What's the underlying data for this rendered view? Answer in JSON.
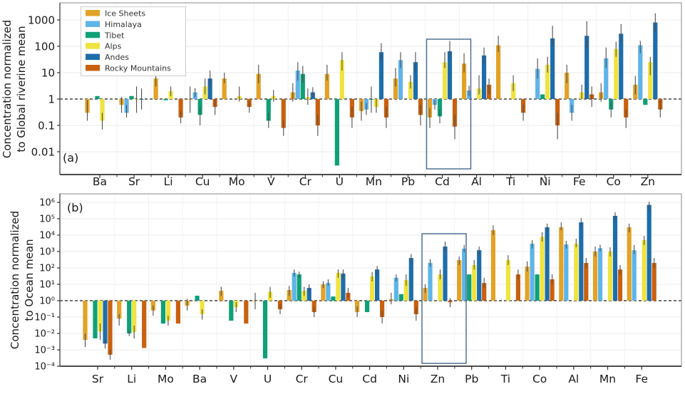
{
  "figure_title": "",
  "legend": {
    "position": "upper-left-panel-a",
    "items": [
      {
        "label": "Ice Sheets",
        "color": "#E2A226"
      },
      {
        "label": "Himalaya",
        "color": "#5FB4E8"
      },
      {
        "label": "Tibet",
        "color": "#0FA077"
      },
      {
        "label": "Alps",
        "color": "#EFE340"
      },
      {
        "label": "Andes",
        "color": "#1E6DAB"
      },
      {
        "label": "Rocky Mountains",
        "color": "#C8610F"
      }
    ]
  },
  "colors": {
    "reference_line": "#1a1a1a",
    "error_bar": "#4d4d4d",
    "highlight_box": "#44688D",
    "grid": "#ebebeb",
    "spine": "#8a8a8a",
    "axis": "#333333"
  },
  "chart_data": [
    {
      "type": "bar",
      "panel_label": "(a)",
      "yscale": "log",
      "ylabel_lines": [
        "Concentration normalized",
        "to Global riverine mean"
      ],
      "reference_line": 1,
      "ylim": [
        0.0015,
        3500
      ],
      "yticks": [
        {
          "value": 1000,
          "label": "1000"
        },
        {
          "value": 100,
          "label": "100"
        },
        {
          "value": 10,
          "label": "10"
        },
        {
          "value": 1,
          "label": "1"
        },
        {
          "value": 0.1,
          "label": "0.1"
        },
        {
          "value": 0.01,
          "label": "0.01"
        }
      ],
      "categories": [
        "Ba",
        "Sr",
        "Li",
        "Cu",
        "Mo",
        "V",
        "Cr",
        "U",
        "Mn",
        "Pb",
        "Cd",
        "Al",
        "Ti",
        "Ni",
        "Fe",
        "Co",
        "Zn"
      ],
      "highlight_box": {
        "category": "Cd"
      },
      "series": [
        {
          "name": "Ice Sheets",
          "color": "#E2A226",
          "values": [
            0.3,
            0.6,
            6,
            1.0,
            6,
            9,
            1.8,
            9,
            0.35,
            6,
            0.2,
            22,
            110,
            null,
            10,
            1.8,
            3.5
          ],
          "errors": [
            [
              0.15,
              0.9
            ],
            [
              0.3,
              1.2
            ],
            [
              3,
              12
            ],
            [
              0.3,
              3
            ],
            [
              4,
              10
            ],
            [
              4,
              20
            ],
            [
              0.8,
              4
            ],
            [
              5,
              20
            ],
            [
              0.15,
              0.8
            ],
            [
              3,
              15
            ],
            [
              0.08,
              0.45
            ],
            [
              10,
              55
            ],
            [
              60,
              250
            ],
            null,
            [
              4,
              20
            ],
            [
              0.8,
              4
            ],
            [
              1.5,
              7.5
            ]
          ]
        },
        {
          "name": "Himalaya",
          "color": "#5FB4E8",
          "values": [
            null,
            0.3,
            null,
            1.8,
            null,
            null,
            12,
            null,
            0.4,
            30,
            0.6,
            2.1,
            null,
            14,
            0.3,
            35,
            110
          ],
          "errors": [
            null,
            [
              0.2,
              0.6
            ],
            null,
            [
              1.2,
              2.6
            ],
            null,
            null,
            [
              5,
              25
            ],
            null,
            [
              0.25,
              0.7
            ],
            [
              15,
              60
            ],
            [
              0.4,
              0.9
            ],
            [
              1.3,
              3.2
            ],
            null,
            [
              6,
              35
            ],
            [
              0.15,
              0.6
            ],
            [
              15,
              90
            ],
            [
              55,
              160
            ]
          ]
        },
        {
          "name": "Tibet",
          "color": "#0FA077",
          "values": [
            1.3,
            1.3,
            0.9,
            0.25,
            null,
            0.15,
            9,
            0.003,
            1.0,
            null,
            0.22,
            null,
            null,
            1.5,
            null,
            0.4,
            0.6
          ],
          "errors": [
            null,
            null,
            null,
            [
              0.1,
              0.5
            ],
            null,
            [
              0.08,
              0.3
            ],
            [
              4,
              18
            ],
            null,
            [
              0.3,
              3
            ],
            null,
            [
              0.12,
              0.4
            ],
            null,
            null,
            null,
            null,
            [
              0.2,
              0.8
            ],
            null
          ]
        },
        {
          "name": "Alps",
          "color": "#EFE340",
          "values": [
            0.15,
            1.0,
            2,
            3,
            1.3,
            1.3,
            1.2,
            30,
            0.5,
            4.5,
            25,
            2.5,
            4,
            20,
            1.8,
            80,
            25
          ],
          "errors": [
            [
              0.07,
              0.3
            ],
            [
              0.3,
              3
            ],
            [
              1.3,
              3
            ],
            [
              1.5,
              6
            ],
            [
              0.8,
              3
            ],
            [
              0.8,
              2.2
            ],
            [
              0.6,
              2.5
            ],
            [
              12,
              60
            ],
            [
              0.3,
              1
            ],
            [
              2.5,
              8
            ],
            [
              15,
              60
            ],
            [
              1.5,
              8
            ],
            [
              2,
              8
            ],
            [
              10,
              40
            ],
            [
              1,
              3.5
            ],
            [
              40,
              150
            ],
            [
              8,
              40
            ]
          ]
        },
        {
          "name": "Andes",
          "color": "#1E6DAB",
          "values": [
            null,
            1.0,
            null,
            6,
            null,
            null,
            1.8,
            null,
            60,
            25,
            65,
            45,
            null,
            200,
            250,
            300,
            800
          ],
          "errors": [
            null,
            [
              0.4,
              2.5
            ],
            null,
            [
              3,
              12
            ],
            null,
            null,
            [
              1.2,
              2.8
            ],
            null,
            [
              30,
              130
            ],
            [
              10,
              60
            ],
            [
              35,
              160
            ],
            [
              20,
              90
            ],
            null,
            [
              100,
              600
            ],
            [
              80,
              900
            ],
            [
              150,
              700
            ],
            [
              350,
              1800
            ]
          ]
        },
        {
          "name": "Rocky Mountains",
          "color": "#C8610F",
          "values": [
            null,
            null,
            0.2,
            0.5,
            0.5,
            0.08,
            0.1,
            0.2,
            0.2,
            0.25,
            0.09,
            3.5,
            0.3,
            0.1,
            1.5,
            0.2,
            0.4
          ],
          "errors": [
            null,
            null,
            [
              0.12,
              0.35
            ],
            [
              0.25,
              1
            ],
            [
              0.3,
              0.8
            ],
            [
              0.04,
              0.15
            ],
            [
              0.04,
              0.25
            ],
            [
              0.08,
              0.5
            ],
            [
              0.08,
              0.5
            ],
            [
              0.1,
              0.6
            ],
            [
              0.03,
              0.25
            ],
            [
              1.5,
              6
            ],
            [
              0.15,
              0.6
            ],
            [
              0.03,
              0.3
            ],
            [
              0.5,
              3
            ],
            [
              0.08,
              0.4
            ],
            [
              0.2,
              0.9
            ]
          ]
        }
      ]
    },
    {
      "type": "bar",
      "panel_label": "(b)",
      "yscale": "log",
      "ylabel_lines": [
        "Concentration normalized",
        "to Ocean mean"
      ],
      "reference_line": 1,
      "ylim": [
        0.0001,
        3000000
      ],
      "yticks": [
        {
          "value": 1000000,
          "label": "10⁶"
        },
        {
          "value": 100000,
          "label": "10⁵"
        },
        {
          "value": 10000,
          "label": "10⁴"
        },
        {
          "value": 1000,
          "label": "10³"
        },
        {
          "value": 100,
          "label": "10²"
        },
        {
          "value": 10,
          "label": "10¹"
        },
        {
          "value": 1,
          "label": "10⁰"
        },
        {
          "value": 0.1,
          "label": "10⁻¹"
        },
        {
          "value": 0.01,
          "label": "10⁻²"
        },
        {
          "value": 0.001,
          "label": "10⁻³"
        },
        {
          "value": 0.0001,
          "label": "10⁻⁴"
        }
      ],
      "categories": [
        "Sr",
        "Li",
        "Mo",
        "Ba",
        "V",
        "U",
        "Cr",
        "Cu",
        "Cd",
        "Ni",
        "Zn",
        "Pb",
        "Ti",
        "Co",
        "Al",
        "Mn",
        "Fe"
      ],
      "highlight_box": {
        "category": "Zn"
      },
      "series": [
        {
          "name": "Ice Sheets",
          "color": "#E2A226",
          "values": [
            0.004,
            0.08,
            0.25,
            0.5,
            4,
            1.0,
            4.5,
            10,
            0.2,
            1.2,
            6,
            300,
            20000,
            120,
            30000,
            1000,
            30000
          ],
          "errors": [
            [
              0.0015,
              0.01
            ],
            [
              0.03,
              0.15
            ],
            [
              0.12,
              0.5
            ],
            [
              0.25,
              1.3
            ],
            [
              2,
              7
            ],
            [
              0.3,
              3
            ],
            [
              2,
              8
            ],
            [
              6,
              15
            ],
            [
              0.1,
              0.45
            ],
            [
              0.6,
              3
            ],
            [
              3,
              10
            ],
            [
              150,
              500
            ],
            [
              10000,
              40000
            ],
            [
              60,
              250
            ],
            [
              20000,
              60000
            ],
            [
              500,
              2000
            ],
            [
              15000,
              50000
            ]
          ]
        },
        {
          "name": "Himalaya",
          "color": "#5FB4E8",
          "values": [
            null,
            null,
            null,
            null,
            null,
            null,
            50,
            12,
            null,
            25,
            200,
            1500,
            null,
            3000,
            2700,
            1600,
            1200
          ],
          "errors": [
            null,
            null,
            null,
            null,
            null,
            null,
            [
              30,
              80
            ],
            [
              8,
              20
            ],
            null,
            [
              15,
              40
            ],
            [
              120,
              350
            ],
            [
              900,
              2500
            ],
            null,
            [
              1500,
              5000
            ],
            [
              1500,
              4500
            ],
            [
              1000,
              2600
            ],
            [
              700,
              2500
            ]
          ]
        },
        {
          "name": "Tibet",
          "color": "#0FA077",
          "values": [
            0.005,
            0.01,
            0.04,
            2,
            0.06,
            0.0003,
            40,
            1.8,
            0.2,
            2.5,
            null,
            40,
            null,
            40,
            null,
            null,
            null
          ],
          "errors": [
            null,
            [
              0.007,
              0.015
            ],
            null,
            null,
            null,
            null,
            [
              25,
              60
            ],
            null,
            null,
            null,
            null,
            null,
            null,
            null,
            null,
            null,
            null
          ]
        },
        {
          "name": "Alps",
          "color": "#EFE340",
          "values": [
            0.013,
            0.012,
            0.06,
            0.15,
            0.4,
            3.5,
            4,
            50,
            30,
            18,
            40,
            150,
            300,
            8000,
            3000,
            1000,
            5000
          ],
          "errors": [
            [
              0.004,
              0.04
            ],
            [
              0.005,
              0.03
            ],
            [
              0.03,
              0.12
            ],
            [
              0.07,
              0.3
            ],
            [
              0.2,
              0.8
            ],
            [
              1.5,
              7
            ],
            [
              2,
              7
            ],
            [
              25,
              80
            ],
            [
              15,
              55
            ],
            [
              8,
              40
            ],
            [
              20,
              80
            ],
            [
              80,
              300
            ],
            [
              150,
              600
            ],
            [
              4000,
              15000
            ],
            [
              1800,
              6000
            ],
            [
              500,
              1800
            ],
            [
              2500,
              9000
            ]
          ]
        },
        {
          "name": "Andes",
          "color": "#1E6DAB",
          "values": [
            0.0024,
            null,
            null,
            null,
            null,
            null,
            6,
            45,
            80,
            400,
            2000,
            1200,
            null,
            30000,
            60000,
            150000,
            700000
          ],
          "errors": [
            [
              0.0012,
              0.004
            ],
            null,
            null,
            null,
            null,
            null,
            [
              3,
              10
            ],
            [
              20,
              80
            ],
            [
              40,
              130
            ],
            [
              200,
              700
            ],
            [
              1000,
              4000
            ],
            [
              600,
              2000
            ],
            null,
            [
              15000,
              50000
            ],
            [
              30000,
              110000
            ],
            [
              80000,
              250000
            ],
            [
              300000,
              1100000
            ]
          ]
        },
        {
          "name": "Rocky Mountains",
          "color": "#C8610F",
          "values": [
            0.0005,
            0.0013,
            0.04,
            null,
            0.04,
            0.3,
            0.2,
            3,
            0.1,
            0.15,
            0.8,
            12,
            40,
            20,
            200,
            80,
            200
          ],
          "errors": [
            [
              0.00025,
              0.001
            ],
            null,
            null,
            null,
            null,
            [
              0.15,
              0.6
            ],
            [
              0.1,
              0.4
            ],
            [
              1.5,
              6
            ],
            [
              0.04,
              0.25
            ],
            [
              0.06,
              0.4
            ],
            [
              0.4,
              1.4
            ],
            [
              6,
              25
            ],
            [
              20,
              80
            ],
            [
              10,
              40
            ],
            [
              100,
              400
            ],
            [
              40,
              150
            ],
            [
              100,
              400
            ]
          ]
        }
      ]
    }
  ]
}
